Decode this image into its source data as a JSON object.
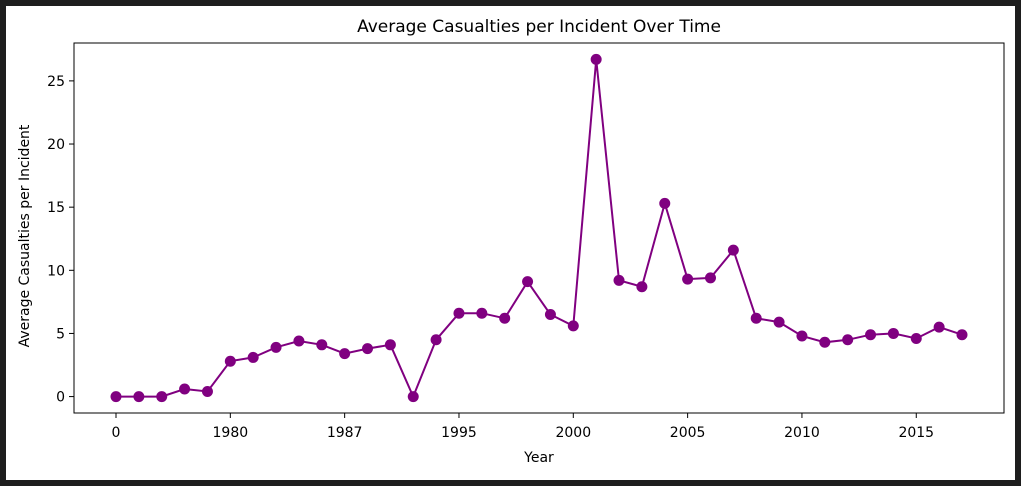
{
  "chart_data": {
    "type": "line",
    "title": "Average Casualties per Incident Over Time",
    "xlabel": "Year",
    "ylabel": "Average Casualties per Incident",
    "color": "#800080",
    "marker": "circle",
    "ylim": [
      -1.3,
      28
    ],
    "yticks": [
      0,
      5,
      10,
      15,
      20,
      25
    ],
    "xtick_labels": [
      "0",
      "1980",
      "1987",
      "1995",
      "2000",
      "2005",
      "2010",
      "2015"
    ],
    "xtick_indices": [
      0,
      5,
      10,
      15,
      20,
      25,
      30,
      35
    ],
    "grid": false,
    "legend": "none",
    "series": [
      {
        "values": [
          0,
          0,
          0,
          0.6,
          0.4,
          2.8,
          3.1,
          3.9,
          4.4,
          4.1,
          3.4,
          3.8,
          4.1,
          0,
          4.5,
          6.6,
          6.6,
          6.2,
          9.1,
          6.5,
          5.6,
          26.7,
          9.2,
          8.7,
          15.3,
          9.3,
          9.4,
          11.6,
          6.2,
          5.9,
          4.8,
          4.3,
          4.5,
          4.9,
          5.0,
          4.6,
          5.5,
          4.9
        ]
      }
    ]
  }
}
